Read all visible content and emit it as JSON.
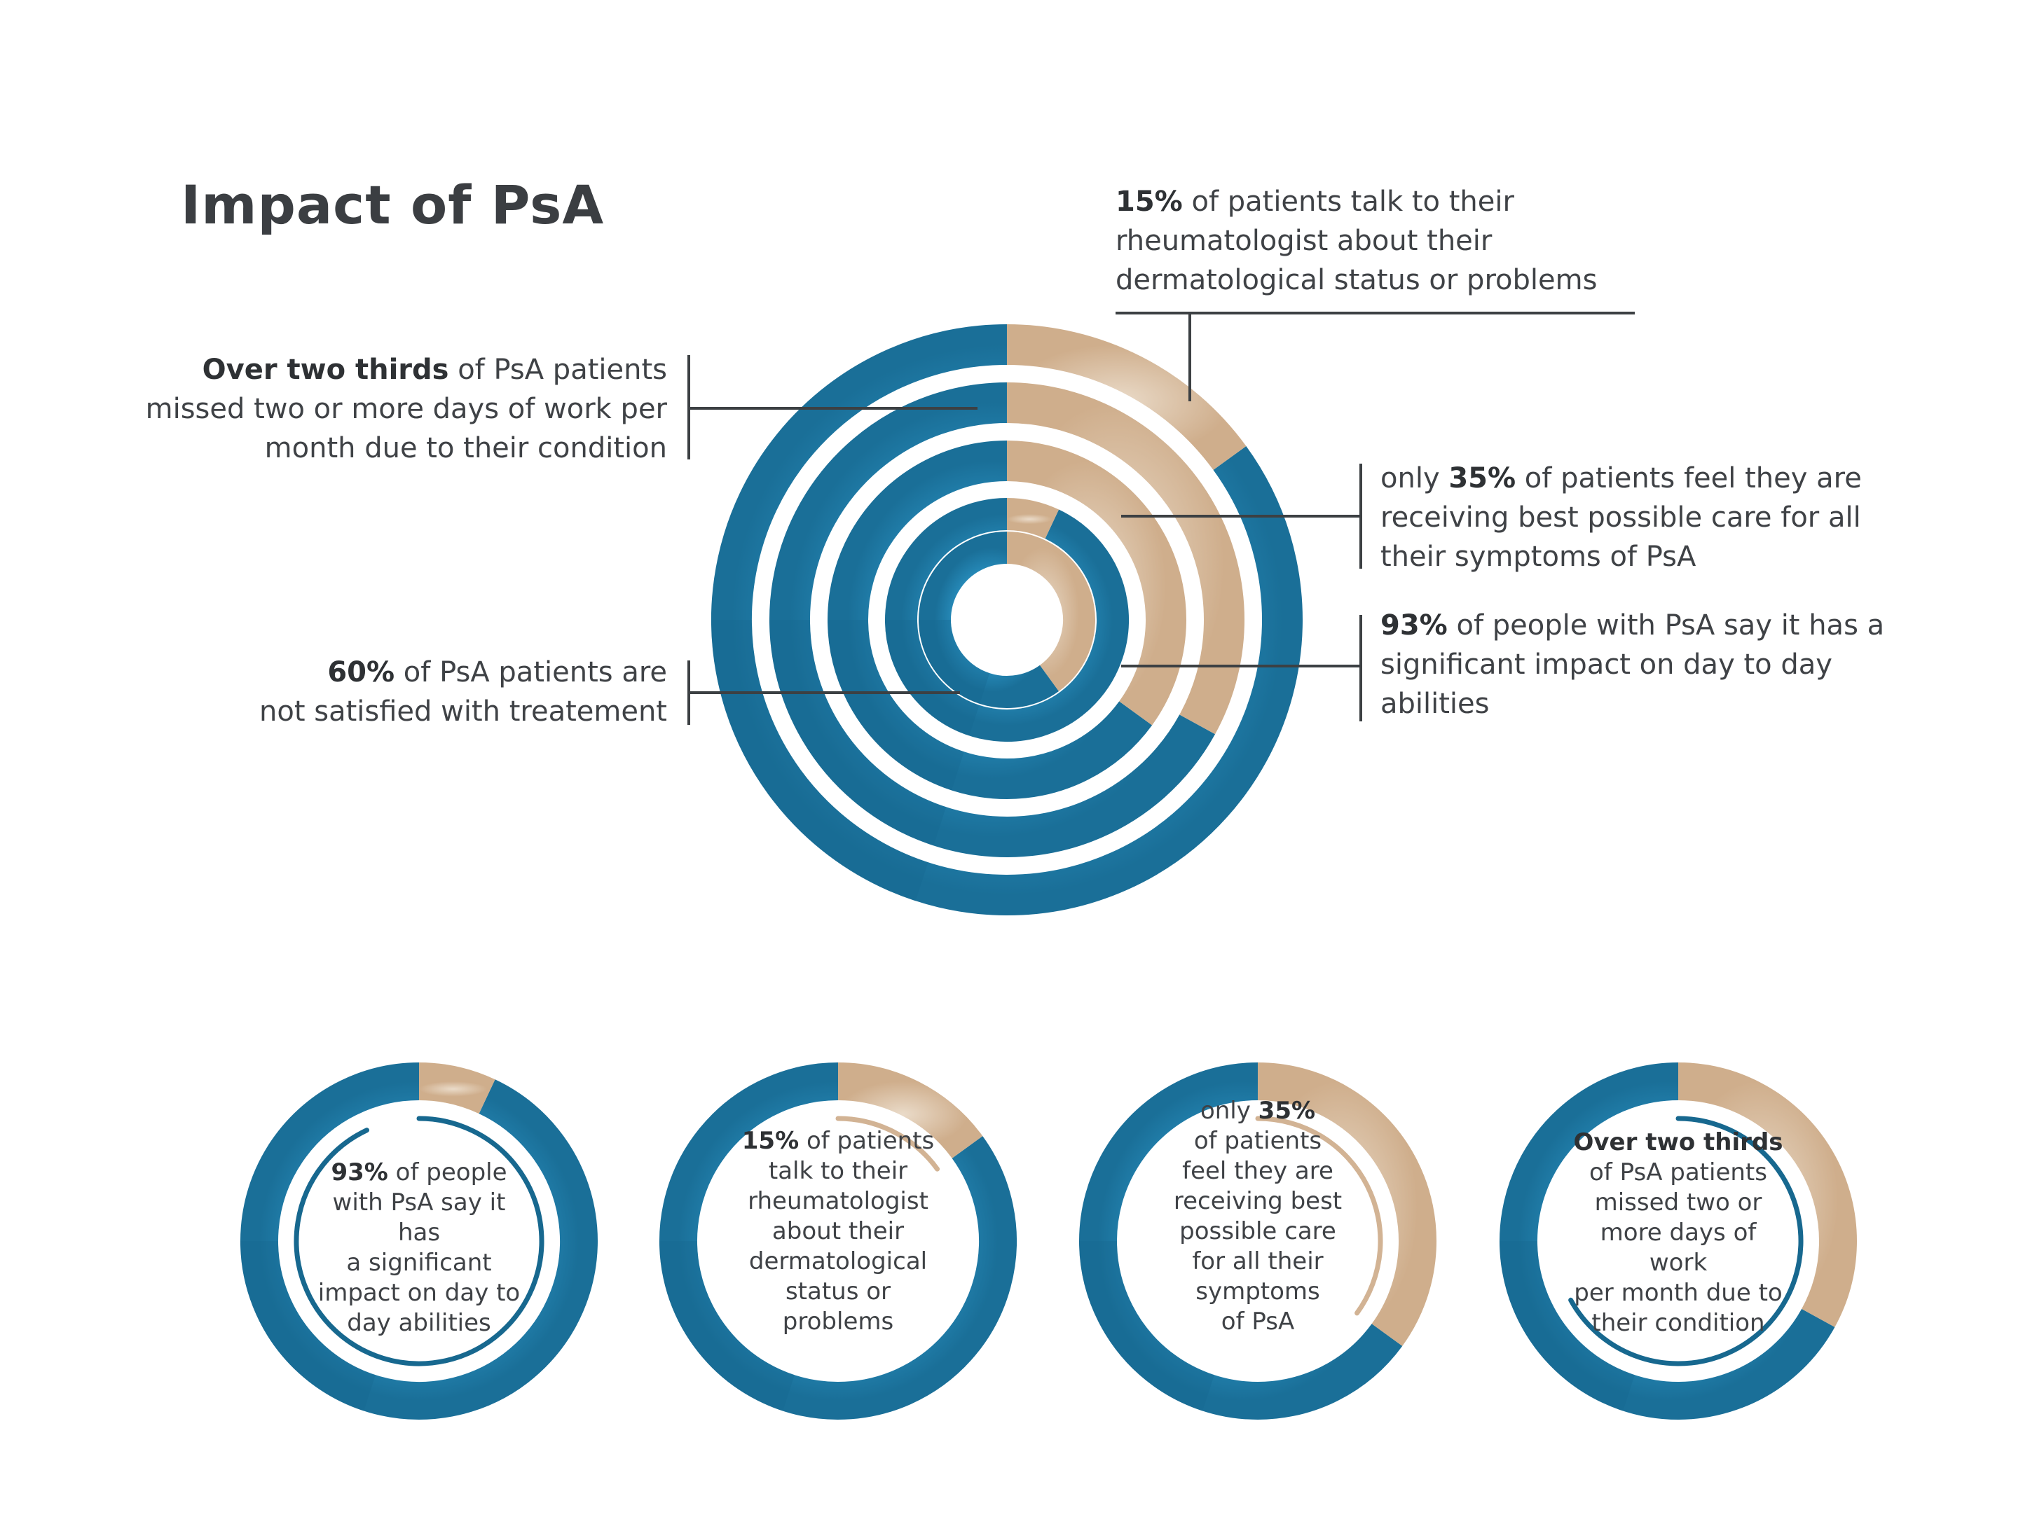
{
  "title": "Impact of PsA",
  "annotations": {
    "two_thirds": {
      "bold": "Over two thirds",
      "lines": [
        " of PsA patients",
        "missed two or more days of work per",
        "month due to their condition"
      ]
    },
    "fifteen": {
      "bold": "15%",
      "lines": [
        " of patients talk to their",
        "rheumatologist about their",
        "dermatological status or problems"
      ]
    },
    "thirty_five": {
      "prefix": "only ",
      "bold": "35%",
      "lines": [
        " of patients feel they are",
        "receiving best possible care for all",
        "their symptoms of PsA"
      ]
    },
    "ninety_three": {
      "bold": "93%",
      "lines": [
        " of people with PsA say it has a",
        "significant impact on day to day",
        "abilities"
      ]
    },
    "sixty": {
      "bold": "60%",
      "lines": [
        " of PsA patients are",
        "not satisfied with treatement"
      ]
    }
  },
  "small_donuts": [
    {
      "prefix": "",
      "bold": "93%",
      "lines": [
        " of people",
        "with PsA say it has",
        "a significant",
        "impact on day to",
        "day abilities"
      ]
    },
    {
      "prefix": "",
      "bold": "15%",
      "lines": [
        " of patients",
        "talk to their",
        "rheumatologist",
        "about their",
        "dermatological",
        "status or problems"
      ]
    },
    {
      "prefix": "only ",
      "bold": "35%",
      "lines": [
        "",
        "of patients",
        "feel they are",
        "receiving best",
        "possible care",
        "for all their",
        "symptoms",
        "of PsA"
      ]
    },
    {
      "prefix": "",
      "bold": "Over two thirds",
      "lines": [
        "",
        "of PsA patients",
        "missed two or",
        "more days of work",
        "per month due to",
        "their condition"
      ]
    }
  ],
  "colors": {
    "blue": "#2a93c4",
    "blue_dark": "#17688f",
    "blue_light": "#64c0e6",
    "tan": "#d2b394",
    "tan_light": "#e6d2bb",
    "line": "#3c4043"
  },
  "chart_data": [
    {
      "type": "pie",
      "variant": "concentric-donut",
      "rings": [
        {
          "label": "15% of patients talk to their rheumatologist about their dermatological status or problems",
          "tan_percent": 15,
          "blue_percent": 85
        },
        {
          "label": "Over two thirds of PsA patients missed two or more days of work per month due to their condition",
          "tan_percent": 33,
          "blue_percent": 67
        },
        {
          "label": "only 35% of patients feel they are receiving best possible care for all their symptoms of PsA",
          "tan_percent": 35,
          "blue_percent": 65
        },
        {
          "label": "93% of people with PsA say it has a significant impact on day to day abilities",
          "tan_percent": 7,
          "blue_percent": 93
        },
        {
          "label": "60% of PsA patients are not satisfied with treatement",
          "tan_percent": 40,
          "blue_percent": 60
        }
      ]
    },
    {
      "type": "pie",
      "variant": "donut",
      "tan_percent": 7,
      "blue_percent": 93,
      "inner_arc_percent": 93,
      "inner_arc_color": "blue"
    },
    {
      "type": "pie",
      "variant": "donut",
      "tan_percent": 15,
      "blue_percent": 85,
      "inner_arc_percent": 15,
      "inner_arc_color": "tan"
    },
    {
      "type": "pie",
      "variant": "donut",
      "tan_percent": 35,
      "blue_percent": 65,
      "inner_arc_percent": 35,
      "inner_arc_color": "tan"
    },
    {
      "type": "pie",
      "variant": "donut",
      "tan_percent": 33,
      "blue_percent": 67,
      "inner_arc_percent": 67,
      "inner_arc_color": "blue"
    }
  ]
}
